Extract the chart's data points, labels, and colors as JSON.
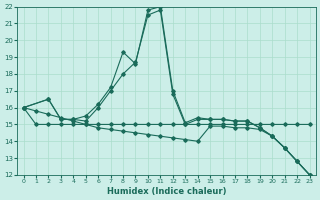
{
  "xlabel": "Humidex (Indice chaleur)",
  "xlim": [
    -0.5,
    23.5
  ],
  "ylim": [
    12,
    22
  ],
  "yticks": [
    12,
    13,
    14,
    15,
    16,
    17,
    18,
    19,
    20,
    21,
    22
  ],
  "xticks": [
    0,
    1,
    2,
    3,
    4,
    5,
    6,
    7,
    8,
    9,
    10,
    11,
    12,
    13,
    14,
    15,
    16,
    17,
    18,
    19,
    20,
    21,
    22,
    23
  ],
  "bg_color": "#cceee8",
  "line_color": "#1a6b5a",
  "grid_color": "#aaddcc",
  "lines": [
    {
      "x": [
        0,
        2,
        3,
        4,
        5,
        6,
        7,
        8,
        9,
        10,
        11,
        12,
        13,
        14,
        15,
        16,
        17,
        18,
        19,
        20,
        21,
        22,
        23
      ],
      "y": [
        16,
        16.5,
        15.3,
        15.3,
        15.5,
        16.2,
        17.2,
        19.3,
        18.6,
        21.8,
        22.0,
        17.0,
        15.1,
        15.4,
        15.3,
        15.3,
        15.2,
        15.2,
        14.8,
        14.3,
        13.6,
        12.8,
        12.0
      ]
    },
    {
      "x": [
        0,
        2,
        3,
        4,
        5,
        6,
        7,
        8,
        9,
        10,
        11,
        12,
        13,
        14,
        15,
        16,
        17,
        18,
        19,
        20,
        21,
        22,
        23
      ],
      "y": [
        16,
        16.5,
        15.3,
        15.3,
        15.2,
        16.0,
        17.0,
        18.0,
        18.7,
        21.5,
        21.8,
        16.8,
        15.0,
        15.3,
        15.3,
        15.3,
        15.2,
        15.2,
        14.8,
        14.3,
        13.6,
        12.8,
        12.0
      ]
    },
    {
      "x": [
        0,
        1,
        2,
        3,
        4,
        5,
        6,
        7,
        8,
        9,
        10,
        11,
        12,
        13,
        14,
        15,
        16,
        17,
        18,
        19,
        20,
        21,
        22,
        23
      ],
      "y": [
        16,
        15,
        15,
        15,
        15,
        15,
        15,
        15,
        15,
        15,
        15,
        15,
        15,
        15,
        15,
        15,
        15,
        15,
        15,
        15,
        15,
        15,
        15,
        15
      ]
    },
    {
      "x": [
        0,
        1,
        2,
        3,
        4,
        5,
        6,
        7,
        8,
        9,
        10,
        11,
        12,
        13,
        14,
        15,
        16,
        17,
        18,
        19,
        20,
        21,
        22,
        23
      ],
      "y": [
        16,
        15.8,
        15.6,
        15.4,
        15.2,
        15.0,
        14.8,
        14.7,
        14.6,
        14.5,
        14.4,
        14.3,
        14.2,
        14.1,
        14.0,
        14.9,
        14.9,
        14.8,
        14.8,
        14.7,
        14.3,
        13.6,
        12.8,
        12.0
      ]
    }
  ]
}
